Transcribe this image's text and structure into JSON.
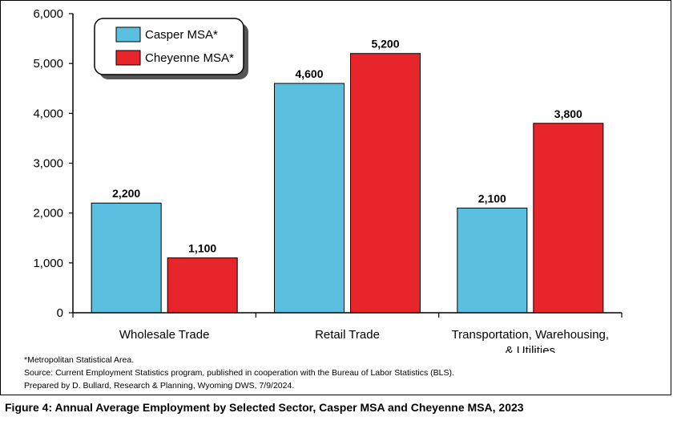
{
  "chart_data": {
    "type": "bar",
    "categories": [
      "Wholesale Trade",
      "Retail Trade",
      "Transportation, Warehousing, & Utilities"
    ],
    "category_lines": [
      [
        "Wholesale Trade"
      ],
      [
        "Retail Trade"
      ],
      [
        "Transportation, Warehousing,",
        "& Utilities"
      ]
    ],
    "series": [
      {
        "name": "Casper MSA*",
        "values": [
          2200,
          4600,
          2100
        ],
        "color": "#5BC0E0"
      },
      {
        "name": "Cheyenne MSA*",
        "values": [
          1100,
          5200,
          3800
        ],
        "color": "#E8252B"
      }
    ],
    "data_labels": [
      [
        "2,200",
        "4,600",
        "2,100"
      ],
      [
        "1,100",
        "5,200",
        "3,800"
      ]
    ],
    "ylim": [
      0,
      6000
    ],
    "y_ticks": [
      0,
      1000,
      2000,
      3000,
      4000,
      5000,
      6000
    ],
    "y_tick_labels": [
      "0",
      "1,000",
      "2,000",
      "3,000",
      "4,000",
      "5,000",
      "6,000"
    ],
    "legend_position": "top-left",
    "grid": false
  },
  "notes": [
    "*Metropolitan Statistical Area.",
    "Source: Current Employment Statistics program, published in cooperation with the Bureau of Labor Statistics (BLS).",
    "Prepared by D. Bullard, Research & Planning, Wyoming DWS, 7/9/2024."
  ],
  "caption": "Figure 4: Annual Average Employment by Selected Sector, Casper MSA and Cheyenne MSA, 2023"
}
